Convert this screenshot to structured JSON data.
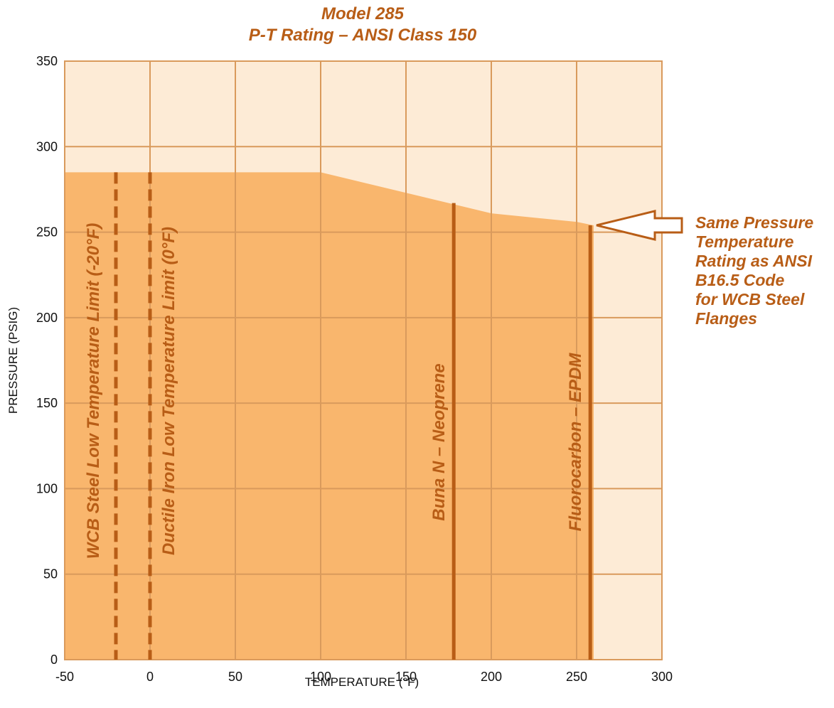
{
  "colors": {
    "plot_background": "#fdebd6",
    "fill_region": "#f9b66d",
    "grid": "#d99a5c",
    "accent": "#b85d16"
  },
  "chart_data": {
    "type": "area",
    "title": "Model 285",
    "subtitle": "P-T Rating – ANSI Class 150",
    "xlabel": "TEMPERATURE (°F)",
    "ylabel": "PRESSURE (PSIG)",
    "xlim": [
      -50,
      300
    ],
    "ylim": [
      0,
      350
    ],
    "x_ticks": [
      -50,
      0,
      50,
      100,
      150,
      200,
      250,
      300
    ],
    "y_ticks": [
      0,
      50,
      100,
      150,
      200,
      250,
      300,
      350
    ],
    "grid": true,
    "series": [
      {
        "x": [
          -50,
          100,
          150,
          200,
          250,
          260
        ],
        "values": [
          285,
          285,
          273,
          261,
          256,
          254
        ]
      }
    ],
    "reference_lines": [
      {
        "x": -20,
        "y_top": 285,
        "style": "dashed",
        "label": "WCB Steel Low Temperature Limit (-20°F)"
      },
      {
        "x": 0,
        "y_top": 285,
        "style": "dashed",
        "label": "Ductile Iron Low Temperature Limit (0°F)"
      },
      {
        "x": 178,
        "y_top": 267,
        "style": "solid",
        "label": "Buna N – Neoprene"
      },
      {
        "x": 258,
        "y_top": 254,
        "style": "solid",
        "label": "Fluorocarbon – EPDM"
      }
    ],
    "annotation": {
      "lines": [
        "Same Pressure",
        "Temperature",
        "Rating as ANSI",
        "B16.5 Code",
        "for WCB Steel",
        "Flanges"
      ],
      "arrow_target": {
        "x": 260,
        "y": 254
      }
    }
  }
}
